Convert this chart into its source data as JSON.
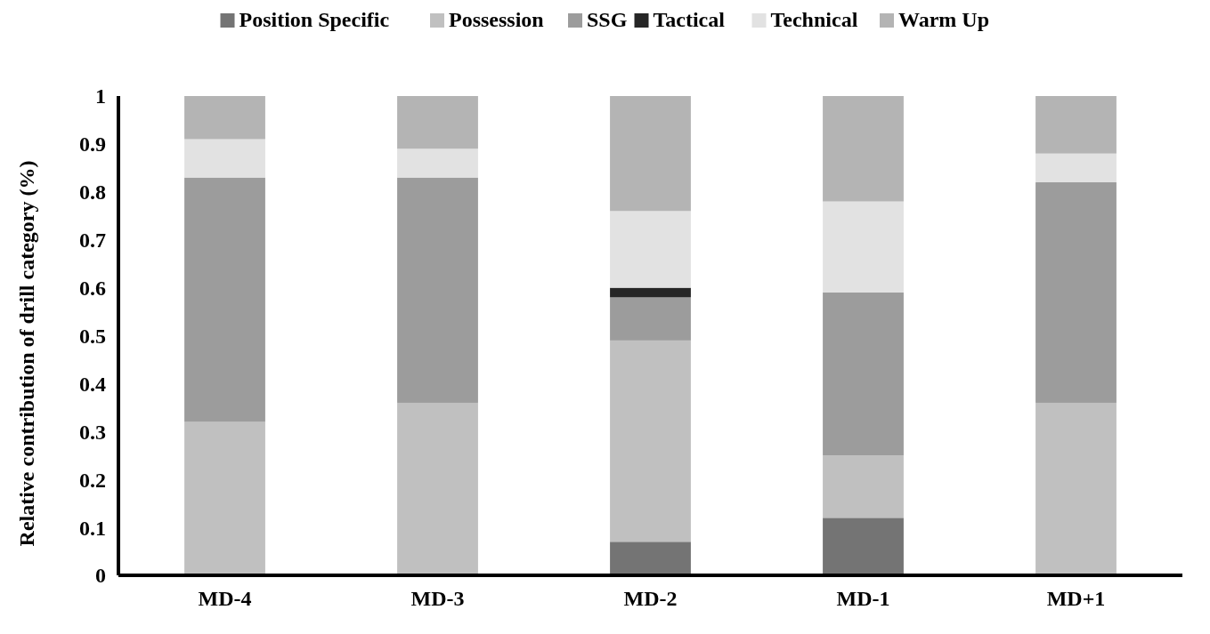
{
  "chart_data": {
    "type": "bar",
    "stacked": true,
    "ylabel": "Relative contribution of drill category (%)",
    "categories": [
      "MD-4",
      "MD-3",
      "MD-2",
      "MD-1",
      "MD+1"
    ],
    "series": [
      {
        "name": "Position Specific",
        "color": "#747474",
        "values": [
          0,
          0,
          0.07,
          0.12,
          0
        ]
      },
      {
        "name": "Possession",
        "color": "#c0c0c0",
        "values": [
          0.32,
          0.36,
          0.42,
          0.13,
          0.36
        ]
      },
      {
        "name": "SSG",
        "color": "#9c9c9c",
        "values": [
          0.51,
          0.47,
          0.09,
          0.34,
          0.46
        ]
      },
      {
        "name": "Tactical",
        "color": "#262626",
        "values": [
          0,
          0,
          0.02,
          0,
          0
        ]
      },
      {
        "name": "Technical",
        "color": "#e2e2e2",
        "values": [
          0.08,
          0.06,
          0.16,
          0.19,
          0.06
        ]
      },
      {
        "name": "Warm Up",
        "color": "#b4b4b4",
        "values": [
          0.09,
          0.11,
          0.24,
          0.22,
          0.12
        ]
      }
    ],
    "ylim": [
      0,
      1
    ],
    "yticks": [
      0,
      0.1,
      0.2,
      0.3,
      0.4,
      0.5,
      0.6,
      0.7,
      0.8,
      0.9,
      1
    ],
    "grid": false,
    "legend": "top"
  }
}
